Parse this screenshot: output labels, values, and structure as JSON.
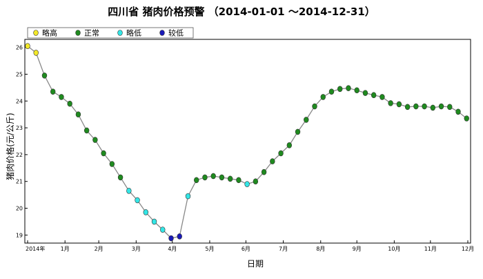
{
  "chart_data": {
    "type": "scatter",
    "title": "四川省 猪肉价格预警 （2014-01-01 ～2014-12-31）",
    "xlabel": "日期",
    "ylabel": "猪肉价格(元/公斤)",
    "ylim": [
      18.7,
      26.3
    ],
    "yticks": [
      19,
      20,
      21,
      22,
      23,
      24,
      25,
      26
    ],
    "xlim": [
      0,
      365
    ],
    "xticks": [
      {
        "day": 0,
        "label": "2014年"
      },
      {
        "day": 31,
        "label": "1月"
      },
      {
        "day": 59,
        "label": "2月"
      },
      {
        "day": 90,
        "label": "3月"
      },
      {
        "day": 120,
        "label": "4月"
      },
      {
        "day": 151,
        "label": "5月"
      },
      {
        "day": 181,
        "label": "6月"
      },
      {
        "day": 212,
        "label": "7月"
      },
      {
        "day": 243,
        "label": "8月"
      },
      {
        "day": 273,
        "label": "9月"
      },
      {
        "day": 304,
        "label": "10月"
      },
      {
        "day": 334,
        "label": "11月"
      },
      {
        "day": 365,
        "label": "12月"
      }
    ],
    "grid": false,
    "legend_position": "top-left",
    "categories": [
      {
        "key": "high",
        "name": "略高",
        "color": "#f2e829"
      },
      {
        "key": "normal",
        "name": "正常",
        "color": "#1f8a1f"
      },
      {
        "key": "low",
        "name": "略低",
        "color": "#33e6e6"
      },
      {
        "key": "lower",
        "name": "较低",
        "color": "#1a1ab8"
      }
    ],
    "line_color": "#888888",
    "series": [
      {
        "x": 0,
        "y": 26.05,
        "cat": "high"
      },
      {
        "x": 7,
        "y": 25.8,
        "cat": "high"
      },
      {
        "x": 14,
        "y": 24.95,
        "cat": "normal"
      },
      {
        "x": 21,
        "y": 24.35,
        "cat": "normal"
      },
      {
        "x": 28,
        "y": 24.15,
        "cat": "normal"
      },
      {
        "x": 35,
        "y": 23.9,
        "cat": "normal"
      },
      {
        "x": 42,
        "y": 23.5,
        "cat": "normal"
      },
      {
        "x": 49,
        "y": 22.9,
        "cat": "normal"
      },
      {
        "x": 56,
        "y": 22.55,
        "cat": "normal"
      },
      {
        "x": 63,
        "y": 22.05,
        "cat": "normal"
      },
      {
        "x": 70,
        "y": 21.65,
        "cat": "normal"
      },
      {
        "x": 77,
        "y": 21.15,
        "cat": "normal"
      },
      {
        "x": 84,
        "y": 20.65,
        "cat": "low"
      },
      {
        "x": 91,
        "y": 20.3,
        "cat": "low"
      },
      {
        "x": 98,
        "y": 19.85,
        "cat": "low"
      },
      {
        "x": 105,
        "y": 19.5,
        "cat": "low"
      },
      {
        "x": 112,
        "y": 19.2,
        "cat": "low"
      },
      {
        "x": 119,
        "y": 18.88,
        "cat": "lower"
      },
      {
        "x": 126,
        "y": 18.95,
        "cat": "lower"
      },
      {
        "x": 133,
        "y": 20.45,
        "cat": "low"
      },
      {
        "x": 140,
        "y": 21.05,
        "cat": "normal"
      },
      {
        "x": 147,
        "y": 21.15,
        "cat": "normal"
      },
      {
        "x": 154,
        "y": 21.2,
        "cat": "normal"
      },
      {
        "x": 161,
        "y": 21.15,
        "cat": "normal"
      },
      {
        "x": 168,
        "y": 21.1,
        "cat": "normal"
      },
      {
        "x": 175,
        "y": 21.05,
        "cat": "normal"
      },
      {
        "x": 182,
        "y": 20.9,
        "cat": "low"
      },
      {
        "x": 189,
        "y": 21.0,
        "cat": "normal"
      },
      {
        "x": 196,
        "y": 21.35,
        "cat": "normal"
      },
      {
        "x": 203,
        "y": 21.75,
        "cat": "normal"
      },
      {
        "x": 210,
        "y": 22.05,
        "cat": "normal"
      },
      {
        "x": 217,
        "y": 22.35,
        "cat": "normal"
      },
      {
        "x": 224,
        "y": 22.85,
        "cat": "normal"
      },
      {
        "x": 231,
        "y": 23.3,
        "cat": "normal"
      },
      {
        "x": 238,
        "y": 23.8,
        "cat": "normal"
      },
      {
        "x": 245,
        "y": 24.15,
        "cat": "normal"
      },
      {
        "x": 252,
        "y": 24.35,
        "cat": "normal"
      },
      {
        "x": 259,
        "y": 24.45,
        "cat": "normal"
      },
      {
        "x": 266,
        "y": 24.48,
        "cat": "normal"
      },
      {
        "x": 273,
        "y": 24.4,
        "cat": "normal"
      },
      {
        "x": 280,
        "y": 24.3,
        "cat": "normal"
      },
      {
        "x": 287,
        "y": 24.22,
        "cat": "normal"
      },
      {
        "x": 294,
        "y": 24.15,
        "cat": "normal"
      },
      {
        "x": 301,
        "y": 23.92,
        "cat": "normal"
      },
      {
        "x": 308,
        "y": 23.88,
        "cat": "normal"
      },
      {
        "x": 315,
        "y": 23.78,
        "cat": "normal"
      },
      {
        "x": 322,
        "y": 23.8,
        "cat": "normal"
      },
      {
        "x": 329,
        "y": 23.8,
        "cat": "normal"
      },
      {
        "x": 336,
        "y": 23.75,
        "cat": "normal"
      },
      {
        "x": 343,
        "y": 23.8,
        "cat": "normal"
      },
      {
        "x": 350,
        "y": 23.78,
        "cat": "normal"
      },
      {
        "x": 357,
        "y": 23.6,
        "cat": "normal"
      },
      {
        "x": 364,
        "y": 23.35,
        "cat": "normal"
      }
    ]
  }
}
